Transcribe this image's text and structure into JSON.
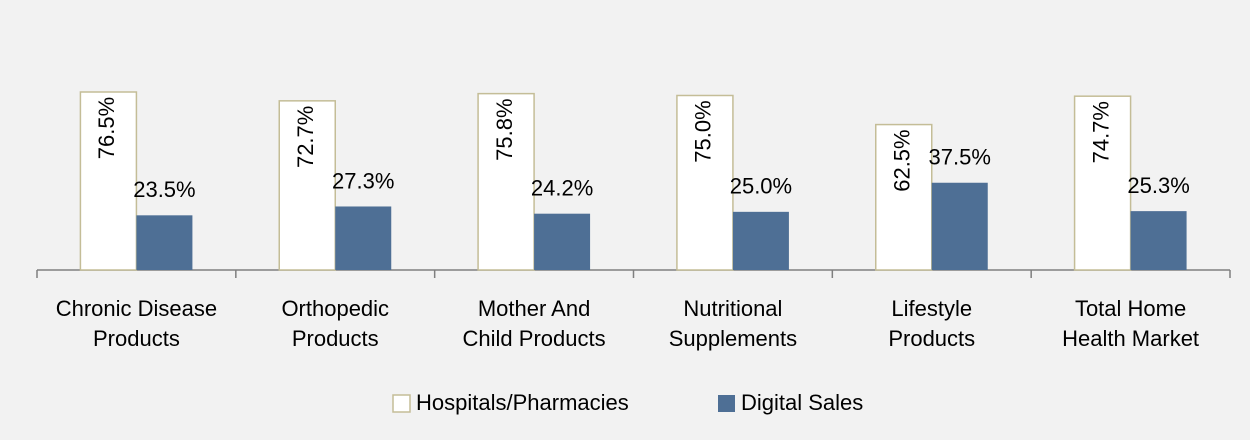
{
  "chart_data": {
    "type": "bar",
    "categories": [
      [
        "Chronic Disease",
        "Products"
      ],
      [
        "Orthopedic",
        "Products"
      ],
      [
        "Mother And",
        "Child Products"
      ],
      [
        "Nutritional",
        "Supplements"
      ],
      [
        "Lifestyle",
        "Products"
      ],
      [
        "Total Home",
        "Health Market"
      ]
    ],
    "series": [
      {
        "name": "Hospitals/Pharmacies",
        "color": "#ffffff",
        "stroke": "#c4bd97",
        "values": [
          76.5,
          72.7,
          75.8,
          75.0,
          62.5,
          74.7
        ],
        "value_labels": [
          "76.5%",
          "72.7%",
          "75.8%",
          "75.0%",
          "62.5%",
          "74.7%"
        ]
      },
      {
        "name": "Digital Sales",
        "color": "#4e6f95",
        "values": [
          23.5,
          27.3,
          24.2,
          25.0,
          37.5,
          25.3
        ],
        "value_labels": [
          "23.5%",
          "27.3%",
          "24.2%",
          "25.0%",
          "37.5%",
          "25.3%"
        ]
      }
    ],
    "legend": "bottom"
  }
}
